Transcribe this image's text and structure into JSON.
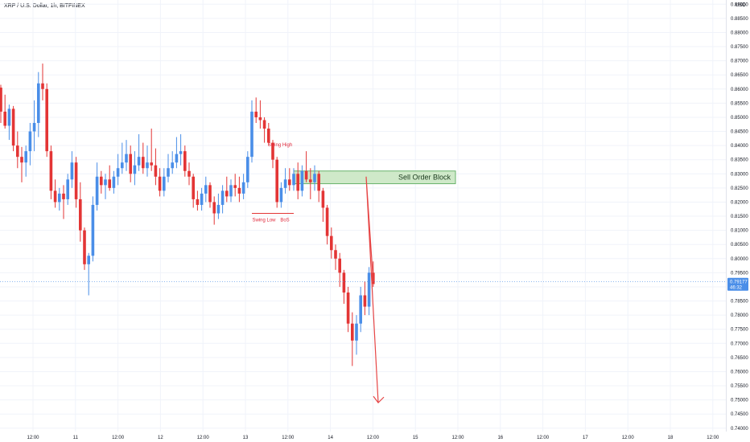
{
  "symbol": "XRP / U.S. Dollar, 1h, BITFINEX",
  "chart_data": {
    "type": "candlestick",
    "currency_label": "USD",
    "ylim": [
      0.7388,
      0.8915
    ],
    "y_ticks": [
      "0.89000",
      "0.88500",
      "0.88000",
      "0.87500",
      "0.87000",
      "0.86500",
      "0.86000",
      "0.85500",
      "0.85000",
      "0.84500",
      "0.84000",
      "0.83500",
      "0.83000",
      "0.82500",
      "0.82000",
      "0.81500",
      "0.81000",
      "0.80500",
      "0.80000",
      "0.79500",
      "0.79000",
      "0.78500",
      "0.78000",
      "0.77500",
      "0.77000",
      "0.76500",
      "0.76000",
      "0.75500",
      "0.75000",
      "0.74500",
      "0.74000"
    ],
    "x_ticks": [
      "12:00",
      "11",
      "12:00",
      "12",
      "12:00",
      "13",
      "12:00",
      "14",
      "12:00",
      "15",
      "12:00",
      "16",
      "12:00",
      "17",
      "12:00",
      "18",
      "12:00"
    ],
    "grid": true,
    "colors": {
      "up": "#4a8ee8",
      "down": "#e33535",
      "zone": "#cfe9c9",
      "zone_border": "#67b26b",
      "arrow": "#e64545"
    },
    "current_price": {
      "price": "0.79177",
      "countdown": "46:32",
      "value": 0.79177
    },
    "candles": [
      [
        0.8605,
        0.8615,
        0.848,
        0.852
      ],
      [
        0.852,
        0.858,
        0.846,
        0.847
      ],
      [
        0.847,
        0.8545,
        0.842,
        0.853
      ],
      [
        0.853,
        0.854,
        0.838,
        0.84
      ],
      [
        0.84,
        0.845,
        0.832,
        0.836
      ],
      [
        0.836,
        0.8395,
        0.827,
        0.834
      ],
      [
        0.834,
        0.84,
        0.829,
        0.838
      ],
      [
        0.838,
        0.848,
        0.833,
        0.845
      ],
      [
        0.845,
        0.856,
        0.838,
        0.848
      ],
      [
        0.848,
        0.866,
        0.843,
        0.862
      ],
      [
        0.862,
        0.869,
        0.856,
        0.86
      ],
      [
        0.86,
        0.862,
        0.836,
        0.838
      ],
      [
        0.838,
        0.84,
        0.821,
        0.824
      ],
      [
        0.824,
        0.828,
        0.818,
        0.82
      ],
      [
        0.82,
        0.825,
        0.817,
        0.823
      ],
      [
        0.823,
        0.826,
        0.814,
        0.821
      ],
      [
        0.821,
        0.83,
        0.819,
        0.828
      ],
      [
        0.828,
        0.838,
        0.825,
        0.834
      ],
      [
        0.834,
        0.836,
        0.818,
        0.821
      ],
      [
        0.821,
        0.827,
        0.806,
        0.81
      ],
      [
        0.81,
        0.811,
        0.796,
        0.798
      ],
      [
        0.798,
        0.802,
        0.787,
        0.801
      ],
      [
        0.801,
        0.822,
        0.799,
        0.819
      ],
      [
        0.819,
        0.834,
        0.817,
        0.829
      ],
      [
        0.829,
        0.831,
        0.823,
        0.826
      ],
      [
        0.826,
        0.83,
        0.821,
        0.828
      ],
      [
        0.828,
        0.833,
        0.824,
        0.825
      ],
      [
        0.825,
        0.831,
        0.823,
        0.829
      ],
      [
        0.829,
        0.837,
        0.826,
        0.832
      ],
      [
        0.832,
        0.841,
        0.83,
        0.834
      ],
      [
        0.834,
        0.842,
        0.831,
        0.837
      ],
      [
        0.837,
        0.84,
        0.827,
        0.83
      ],
      [
        0.83,
        0.838,
        0.826,
        0.833
      ],
      [
        0.833,
        0.844,
        0.831,
        0.836
      ],
      [
        0.836,
        0.841,
        0.83,
        0.832
      ],
      [
        0.832,
        0.84,
        0.829,
        0.834
      ],
      [
        0.834,
        0.846,
        0.831,
        0.833
      ],
      [
        0.833,
        0.839,
        0.826,
        0.829
      ],
      [
        0.829,
        0.832,
        0.822,
        0.824
      ],
      [
        0.824,
        0.832,
        0.822,
        0.829
      ],
      [
        0.829,
        0.837,
        0.827,
        0.832
      ],
      [
        0.832,
        0.838,
        0.83,
        0.834
      ],
      [
        0.834,
        0.843,
        0.832,
        0.837
      ],
      [
        0.837,
        0.844,
        0.833,
        0.838
      ],
      [
        0.838,
        0.84,
        0.829,
        0.831
      ],
      [
        0.831,
        0.834,
        0.826,
        0.829
      ],
      [
        0.829,
        0.83,
        0.818,
        0.821
      ],
      [
        0.821,
        0.824,
        0.817,
        0.819
      ],
      [
        0.819,
        0.825,
        0.817,
        0.823
      ],
      [
        0.823,
        0.829,
        0.82,
        0.826
      ],
      [
        0.826,
        0.827,
        0.818,
        0.82
      ],
      [
        0.82,
        0.822,
        0.812,
        0.816
      ],
      [
        0.816,
        0.823,
        0.814,
        0.819
      ],
      [
        0.819,
        0.826,
        0.816,
        0.824
      ],
      [
        0.824,
        0.829,
        0.82,
        0.822
      ],
      [
        0.822,
        0.828,
        0.82,
        0.826
      ],
      [
        0.826,
        0.83,
        0.822,
        0.825
      ],
      [
        0.825,
        0.829,
        0.82,
        0.823
      ],
      [
        0.823,
        0.83,
        0.821,
        0.827
      ],
      [
        0.827,
        0.838,
        0.825,
        0.836
      ],
      [
        0.836,
        0.856,
        0.834,
        0.852
      ],
      [
        0.852,
        0.857,
        0.848,
        0.85
      ],
      [
        0.85,
        0.856,
        0.846,
        0.849
      ],
      [
        0.849,
        0.85,
        0.841,
        0.846
      ],
      [
        0.846,
        0.848,
        0.84,
        0.841
      ],
      [
        0.841,
        0.842,
        0.832,
        0.835
      ],
      [
        0.835,
        0.836,
        0.818,
        0.82
      ],
      [
        0.82,
        0.827,
        0.818,
        0.825
      ],
      [
        0.825,
        0.832,
        0.823,
        0.828
      ],
      [
        0.828,
        0.832,
        0.824,
        0.826
      ],
      [
        0.826,
        0.832,
        0.824,
        0.83
      ],
      [
        0.83,
        0.834,
        0.821,
        0.824
      ],
      [
        0.824,
        0.833,
        0.822,
        0.831
      ],
      [
        0.831,
        0.838,
        0.827,
        0.828
      ],
      [
        0.828,
        0.832,
        0.821,
        0.827
      ],
      [
        0.827,
        0.833,
        0.824,
        0.83
      ],
      [
        0.83,
        0.831,
        0.82,
        0.824
      ],
      [
        0.824,
        0.825,
        0.813,
        0.818
      ],
      [
        0.818,
        0.819,
        0.805,
        0.808
      ],
      [
        0.808,
        0.811,
        0.8,
        0.803
      ],
      [
        0.803,
        0.805,
        0.796,
        0.8
      ],
      [
        0.8,
        0.802,
        0.79,
        0.795
      ],
      [
        0.795,
        0.796,
        0.784,
        0.788
      ],
      [
        0.788,
        0.79,
        0.774,
        0.777
      ],
      [
        0.777,
        0.781,
        0.762,
        0.771
      ],
      [
        0.771,
        0.78,
        0.766,
        0.777
      ],
      [
        0.777,
        0.79,
        0.774,
        0.787
      ],
      [
        0.787,
        0.792,
        0.78,
        0.783
      ],
      [
        0.783,
        0.797,
        0.78,
        0.795
      ],
      [
        0.795,
        0.799,
        0.79,
        0.791
      ]
    ],
    "annotations": [
      {
        "text": "Swing High",
        "value": 0.8395
      },
      {
        "text": "Swing Low",
        "value": 0.816
      },
      {
        "text": "BoS",
        "value": 0.816
      }
    ],
    "order_block": {
      "label": "Sell Order Block",
      "top": 0.831,
      "bottom": 0.8265
    },
    "projection": {
      "peak": 0.829,
      "target": 0.749
    }
  }
}
